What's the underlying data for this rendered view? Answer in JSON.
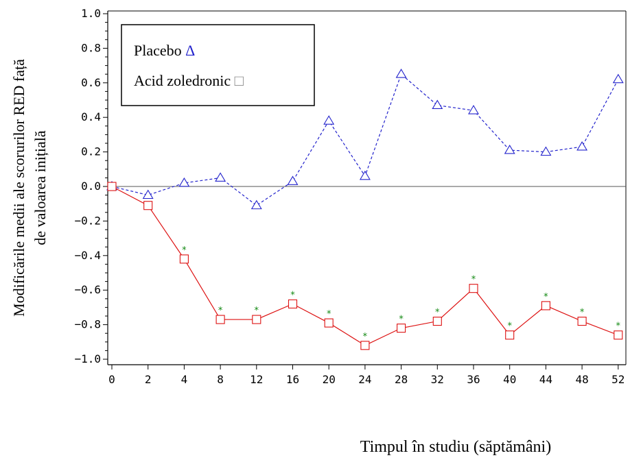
{
  "chart_data": {
    "type": "line",
    "title": "",
    "xlabel": "Timpul în studiu (săptămâni)",
    "ylabel_line1": "Modificările medii ale scorurilor RED față",
    "ylabel_line2": "de valoarea inițială",
    "categories": [
      "0",
      "2",
      "4",
      "8",
      "12",
      "16",
      "20",
      "24",
      "28",
      "32",
      "36",
      "40",
      "44",
      "48",
      "52"
    ],
    "ylim": [
      -1.0,
      1.0
    ],
    "yticks": [
      {
        "value": 1.0,
        "label": "1.0"
      },
      {
        "value": 0.8,
        "label": "0.8"
      },
      {
        "value": 0.6,
        "label": "0.6"
      },
      {
        "value": 0.4,
        "label": "0.4"
      },
      {
        "value": 0.2,
        "label": "0.2"
      },
      {
        "value": 0.0,
        "label": "0.0"
      },
      {
        "value": -0.2,
        "label": "−0.2"
      },
      {
        "value": -0.4,
        "label": "−0.4"
      },
      {
        "value": -0.6,
        "label": "−0.6"
      },
      {
        "value": -0.8,
        "label": "−0.8"
      },
      {
        "value": -1.0,
        "label": "−1.0"
      }
    ],
    "grid": false,
    "legend_position": "top-left",
    "series": [
      {
        "name": "Placebo",
        "legend_symbol": "Δ",
        "marker": "triangle",
        "line_style": "dashed",
        "color": "#2222cc",
        "values": [
          0.0,
          -0.05,
          0.02,
          0.05,
          -0.11,
          0.03,
          0.38,
          0.06,
          0.65,
          0.47,
          0.44,
          0.21,
          0.2,
          0.23,
          0.62
        ],
        "significant": []
      },
      {
        "name": "Acid zoledronic",
        "legend_symbol": "□",
        "marker": "square",
        "line_style": "solid",
        "color": "#dd1111",
        "values": [
          0.0,
          -0.11,
          -0.42,
          -0.77,
          -0.77,
          -0.68,
          -0.79,
          -0.92,
          -0.82,
          -0.78,
          -0.59,
          -0.86,
          -0.69,
          -0.78,
          -0.86
        ],
        "significant": [
          false,
          false,
          true,
          true,
          true,
          true,
          true,
          true,
          true,
          true,
          true,
          true,
          true,
          true,
          true
        ]
      }
    ],
    "significance_marker": "*",
    "significance_color": "#118811",
    "reference_line_y": 0.0,
    "legend_symbol_colors": [
      "#2222cc",
      "#888888"
    ]
  }
}
